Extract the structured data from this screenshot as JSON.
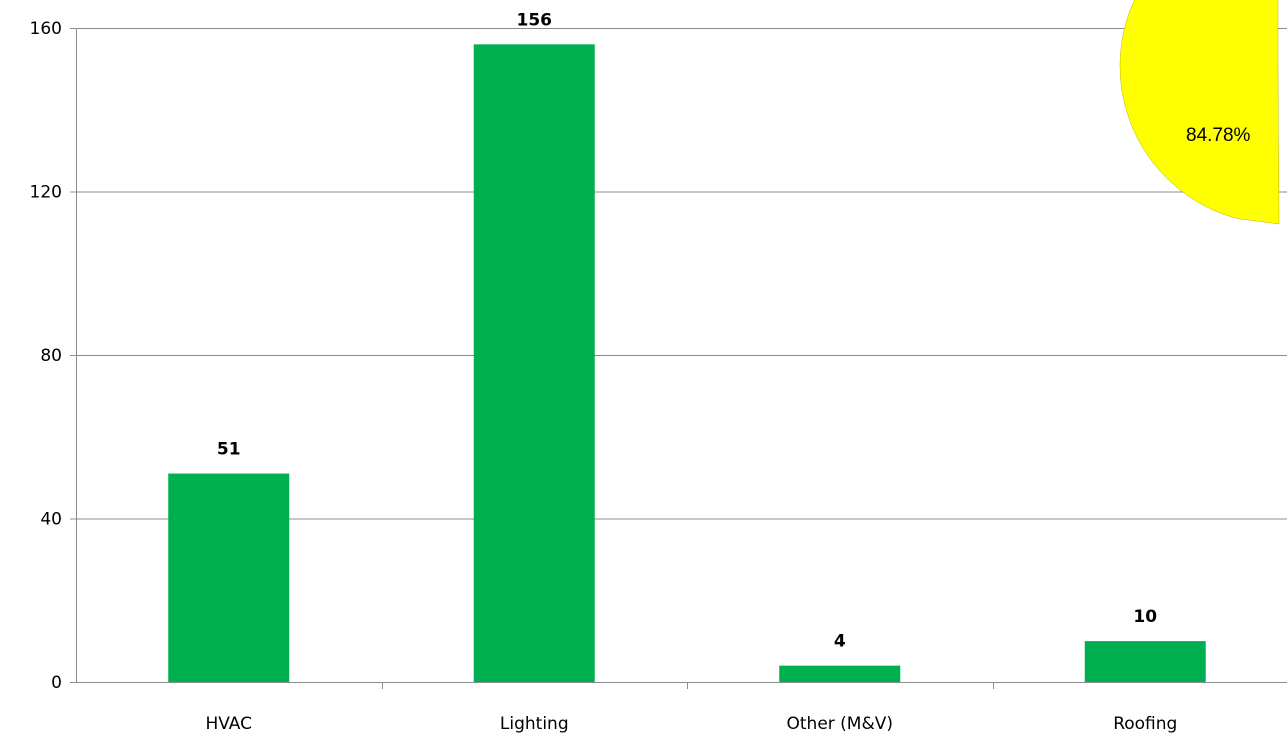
{
  "chart_data": {
    "type": "bar",
    "categories": [
      "HVAC",
      "Lighting",
      "Other (M&V)",
      "Roofing"
    ],
    "values": [
      51,
      156,
      4,
      10
    ],
    "data_labels": [
      "51",
      "156",
      "4",
      "10"
    ],
    "title": "",
    "xlabel": "",
    "ylabel": "",
    "ylim": [
      0,
      160
    ],
    "yticks": [
      0,
      40,
      80,
      120,
      160
    ],
    "grid": true,
    "bar_color": "#00B050"
  },
  "overlay": {
    "percent_label": "84.78%",
    "fill_color": "#FFFF00"
  }
}
